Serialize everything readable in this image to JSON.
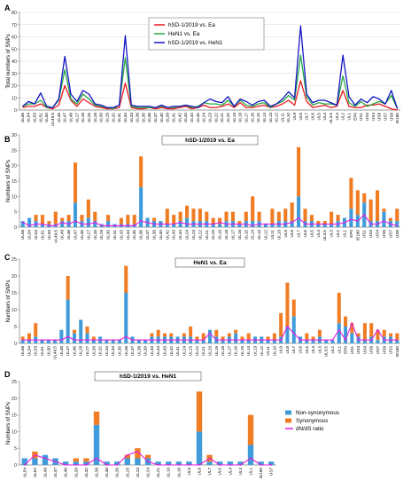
{
  "chart_data": [
    {
      "panel": "A",
      "type": "line",
      "title": "",
      "ylabel": "Total numbers of SNPs",
      "ylim": [
        0,
        80
      ],
      "yticks": [
        0,
        10,
        20,
        30,
        40,
        50,
        60,
        70,
        80
      ],
      "grid": true,
      "legend": "top-center",
      "categories": [
        "UL56",
        "UL54",
        "UL53",
        "UL51",
        "UL50",
        "UL49.5",
        "UL48",
        "UL47",
        "UL46",
        "UL44",
        "UL43",
        "UL42",
        "UL41",
        "UL40",
        "UL39",
        "UL38",
        "UL37",
        "UL36",
        "UL35",
        "UL34",
        "UL33",
        "UL32",
        "UL31",
        "UL30",
        "UL29",
        "UL28",
        "UL27",
        "UL26",
        "UL25",
        "UL24",
        "UL23",
        "UL22",
        "UL21",
        "UL20",
        "UL19",
        "UL18",
        "UL17",
        "UL16",
        "UL15",
        "UL14",
        "UL13",
        "UL12",
        "UL11",
        "UL10",
        "UL9",
        "UL8",
        "UL7",
        "UL6",
        "UL5",
        "UL4",
        "UL3",
        "UL2",
        "UL1",
        "EP0",
        "US1",
        "US3",
        "US4",
        "US5",
        "US6",
        "US7",
        "US8",
        "US2",
        "IE180"
      ],
      "category_labels": [
        "UL56",
        "UL54",
        "UL53",
        "UL51",
        "UL50",
        "UL49.5",
        "UL48",
        "UL47",
        "UL46",
        "UL27",
        "UL28",
        "UL25",
        "UL26",
        "UL30",
        "UL29",
        "UL32",
        "UL31",
        "UL34",
        "UL33",
        "UL36",
        "UL35",
        "UL38",
        "UL37",
        "UL40",
        "UL39",
        "UL41",
        "UL42",
        "UL43",
        "UL44",
        "UL45",
        "UL24",
        "UL23",
        "UL22",
        "UL21",
        "UL20",
        "UL19",
        "UL18",
        "UL17",
        "UL16",
        "UL15",
        "UL14",
        "UL13",
        "UL12",
        "UL11",
        "UL10",
        "UL9",
        "UL8",
        "UL7",
        "UL6",
        "UL5",
        "UL4",
        "UL3.5",
        "UL3",
        "UL2",
        "UL1",
        "EP0",
        "US1",
        "US3",
        "US4",
        "US6",
        "US7",
        "US8",
        "IE180"
      ],
      "series": [
        {
          "name": "hSD-1/2019 vs. Ea",
          "color": "#e8191f",
          "values": [
            2,
            3,
            3,
            5,
            2,
            1,
            4,
            20,
            8,
            3,
            9,
            6,
            3,
            2,
            1,
            1,
            2,
            22,
            2,
            1,
            1,
            2,
            1,
            2,
            1,
            1,
            2,
            3,
            1,
            2,
            4,
            2,
            2,
            3,
            5,
            2,
            6,
            2,
            2,
            3,
            4,
            2,
            3,
            5,
            8,
            4,
            24,
            7,
            2,
            3,
            4,
            2,
            3,
            16,
            3,
            2,
            2,
            4,
            4,
            5,
            3,
            1,
            0
          ]
        },
        {
          "name": "HeN1 vs. Ea",
          "color": "#27a744",
          "values": [
            3,
            5,
            5,
            8,
            2,
            2,
            8,
            33,
            9,
            5,
            13,
            9,
            4,
            3,
            2,
            1,
            4,
            43,
            3,
            2,
            2,
            2,
            2,
            3,
            2,
            2,
            3,
            4,
            2,
            3,
            6,
            5,
            5,
            4,
            8,
            3,
            8,
            4,
            3,
            5,
            6,
            2,
            5,
            7,
            12,
            8,
            45,
            11,
            4,
            6,
            5,
            5,
            4,
            28,
            6,
            3,
            7,
            3,
            5,
            7,
            5,
            12,
            1
          ]
        },
        {
          "name": "hSD-1/2019 vs. HeN1",
          "color": "#1515c4",
          "values": [
            3,
            7,
            5,
            14,
            3,
            2,
            9,
            44,
            13,
            7,
            16,
            13,
            5,
            4,
            2,
            2,
            4,
            61,
            4,
            3,
            3,
            3,
            2,
            4,
            2,
            3,
            3,
            4,
            3,
            2,
            6,
            9,
            7,
            6,
            11,
            3,
            9,
            7,
            4,
            7,
            8,
            3,
            5,
            9,
            15,
            10,
            69,
            13,
            6,
            8,
            8,
            6,
            4,
            45,
            11,
            4,
            9,
            6,
            11,
            9,
            5,
            16,
            1
          ]
        }
      ]
    },
    {
      "panel": "B",
      "type": "bar",
      "title": "hSD-1/2019 vs. Ea",
      "ylabel": "Numbers of SNPs",
      "ylim": [
        0,
        30
      ],
      "yticks": [
        0,
        5,
        10,
        15,
        20,
        25,
        30
      ],
      "stacked": true,
      "categories": [
        "UL56",
        "UL54",
        "UL53",
        "UL51",
        "UL50",
        "UL49.5",
        "UL49",
        "UL48",
        "UL47",
        "UL46",
        "UL27",
        "UL28",
        "UL29",
        "UL30",
        "UL31",
        "UL33",
        "UL34",
        "UL35",
        "UL36",
        "UL37",
        "UL38",
        "UL40",
        "UL42",
        "UL43",
        "UL44",
        "UL24",
        "UL23",
        "UL22",
        "UL21",
        "UL20",
        "UL19",
        "UL18",
        "UL17",
        "UL16",
        "UL15",
        "UL14",
        "UL13",
        "UL12",
        "UL11",
        "UL10",
        "UL9",
        "UL8",
        "UL7",
        "UL6",
        "UL5",
        "UL4",
        "UL3.5",
        "UL3",
        "UL2",
        "UL1",
        "EP0",
        "IE180",
        "US1",
        "US3",
        "US4",
        "US6",
        "US7",
        "US8"
      ],
      "series": [
        {
          "name": "Non-synonymous",
          "color": "#3f9bd9",
          "values": [
            2,
            3,
            2,
            1,
            1,
            1,
            2,
            2,
            8,
            2,
            3,
            2,
            1,
            2,
            1,
            1,
            1,
            1,
            13,
            3,
            2,
            2,
            1,
            1,
            2,
            3,
            2,
            2,
            2,
            1,
            1,
            2,
            2,
            1,
            2,
            2,
            2,
            1,
            1,
            2,
            2,
            2,
            10,
            2,
            2,
            1,
            1,
            1,
            2,
            3,
            6,
            4,
            8,
            2,
            2,
            5,
            2,
            2
          ]
        },
        {
          "name": "Synonymous",
          "color": "#f07c24",
          "values": [
            0,
            0,
            2,
            3,
            1,
            4,
            1,
            2,
            13,
            2,
            6,
            3,
            0,
            2,
            0,
            2,
            3,
            3,
            10,
            0,
            1,
            0,
            5,
            3,
            3,
            4,
            4,
            4,
            3,
            2,
            2,
            3,
            3,
            1,
            3,
            8,
            3,
            0,
            5,
            3,
            4,
            6,
            16,
            4,
            2,
            1,
            1,
            4,
            2,
            0,
            10,
            8,
            3,
            7,
            10,
            1,
            1,
            4
          ]
        },
        {
          "name": "dN/dS ratio",
          "color": "#e31fe0",
          "values": [
            1.5,
            0.5,
            1,
            1,
            0.5,
            0.5,
            1.5,
            1,
            2,
            1,
            1,
            1.5,
            0.5,
            0.5,
            0.5,
            0.5,
            0.5,
            0.5,
            2,
            1.5,
            1,
            1,
            1,
            1,
            1.5,
            1,
            1,
            1,
            1,
            1,
            1.5,
            1,
            1,
            1,
            1,
            0.5,
            1,
            1,
            1,
            1,
            1,
            1.5,
            3,
            1,
            1,
            1,
            1,
            1,
            1,
            1.5,
            2.5,
            2,
            4,
            1,
            1,
            2,
            1,
            0.5
          ]
        }
      ]
    },
    {
      "panel": "C",
      "type": "bar",
      "title": "HeN1 vs. Ea",
      "ylabel": "Numbers of SNPs",
      "ylim": [
        0,
        25
      ],
      "yticks": [
        0,
        5,
        10,
        15,
        20,
        25
      ],
      "stacked": true,
      "categories": [
        "UL56",
        "UL54",
        "UL53",
        "UL51",
        "UL50",
        "UL49.5",
        "UL48",
        "UL47",
        "UL46",
        "UL28",
        "UL27",
        "UL30",
        "UL32",
        "UL33",
        "UL34",
        "UL35",
        "UL36",
        "UL37",
        "UL38",
        "UL39",
        "UL40",
        "UL44",
        "UL43",
        "UL42",
        "UL41",
        "UL24",
        "UL23",
        "UL22",
        "UL21",
        "UL20",
        "UL19",
        "UL18",
        "UL17",
        "UL16",
        "UL15",
        "UL14",
        "UL13",
        "UL12",
        "UL11",
        "UL10",
        "UL9",
        "UL8",
        "UL7",
        "UL6",
        "UL5",
        "UL4",
        "UL3",
        "UL3.5",
        "UL2",
        "UL1",
        "EP0",
        "US1",
        "US3",
        "US4",
        "US6",
        "US7",
        "US8",
        "US2",
        "IE180"
      ],
      "series": [
        {
          "name": "Non-synonymous",
          "color": "#3f9bd9",
          "values": [
            1,
            1,
            2,
            1,
            1,
            1,
            4,
            13,
            3,
            7,
            3,
            1,
            2,
            1,
            1,
            1,
            15,
            2,
            1,
            1,
            2,
            2,
            2,
            2,
            2,
            2,
            2,
            1,
            1,
            4,
            2,
            1,
            2,
            3,
            1,
            1,
            2,
            2,
            1,
            1,
            2,
            5,
            8,
            2,
            1,
            1,
            2,
            1,
            1,
            6,
            5,
            3,
            2,
            1,
            2,
            1,
            2,
            2,
            1
          ]
        },
        {
          "name": "Synonymous",
          "color": "#f07c24",
          "values": [
            1,
            2,
            4,
            0,
            0,
            0,
            0,
            7,
            1,
            0,
            2,
            1,
            0,
            0,
            0,
            0,
            8,
            0,
            0,
            0,
            1,
            2,
            1,
            1,
            0,
            1,
            3,
            1,
            2,
            0,
            2,
            1,
            1,
            1,
            1,
            2,
            0,
            0,
            1,
            2,
            7,
            13,
            5,
            0,
            2,
            1,
            2,
            0,
            0,
            9,
            3,
            3,
            1,
            5,
            4,
            3,
            2,
            1,
            2
          ]
        },
        {
          "name": "dN/dS ratio",
          "color": "#e31fe0",
          "values": [
            1,
            1,
            1,
            1,
            1,
            1,
            1,
            2,
            1,
            1,
            1,
            1,
            1,
            1,
            1,
            1,
            2,
            1,
            1,
            1,
            1,
            1,
            1,
            1,
            1,
            1,
            1,
            1,
            1,
            3,
            1,
            1,
            1,
            1,
            1,
            1,
            1,
            1,
            1,
            1,
            1,
            5,
            3,
            1,
            1,
            1,
            1,
            1,
            1,
            4,
            1,
            6,
            1,
            1,
            1,
            4,
            1,
            1,
            1
          ]
        }
      ]
    },
    {
      "panel": "D",
      "type": "bar",
      "title": "hSD-1/2019 vs. HeN1",
      "ylabel": "Numbers of SNPs",
      "ylim": [
        0,
        25
      ],
      "yticks": [
        0,
        5,
        10,
        15,
        20,
        25
      ],
      "stacked": true,
      "legend": "right",
      "categories": [
        "UL54",
        "UL52",
        "UL49",
        "UL47",
        "UL46",
        "UL30",
        "UL32",
        "UL36",
        "UL38",
        "UL26",
        "UL25",
        "UL23",
        "UL24",
        "UL21",
        "UL19",
        "UL16",
        "UL9",
        "UL8",
        "UL7",
        "UL5",
        "UL4",
        "UL3",
        "UL1",
        "IE180",
        "US7"
      ],
      "series": [
        {
          "name": "Non-synonymous",
          "color": "#3f9bd9",
          "values": [
            2,
            2,
            3,
            2,
            1,
            1,
            1,
            12,
            1,
            1,
            2,
            2,
            2,
            1,
            1,
            1,
            1,
            10,
            1,
            1,
            1,
            1,
            6,
            1,
            1
          ]
        },
        {
          "name": "Synonymous",
          "color": "#f07c24",
          "values": [
            0,
            2,
            0,
            0,
            0,
            1,
            1,
            4,
            0,
            0,
            1,
            3,
            1,
            0,
            0,
            0,
            0,
            12,
            2,
            0,
            0,
            0,
            9,
            0,
            0
          ]
        },
        {
          "name": "dN/dS ratio",
          "color": "#e31fe0",
          "values": [
            0,
            3,
            2,
            1,
            0,
            0,
            0,
            2,
            0,
            0,
            3,
            4,
            1,
            0,
            0,
            0,
            0,
            0,
            2,
            0,
            0,
            0,
            2,
            0,
            0
          ]
        }
      ]
    }
  ],
  "panel_letters": [
    "A",
    "B",
    "C",
    "D"
  ]
}
